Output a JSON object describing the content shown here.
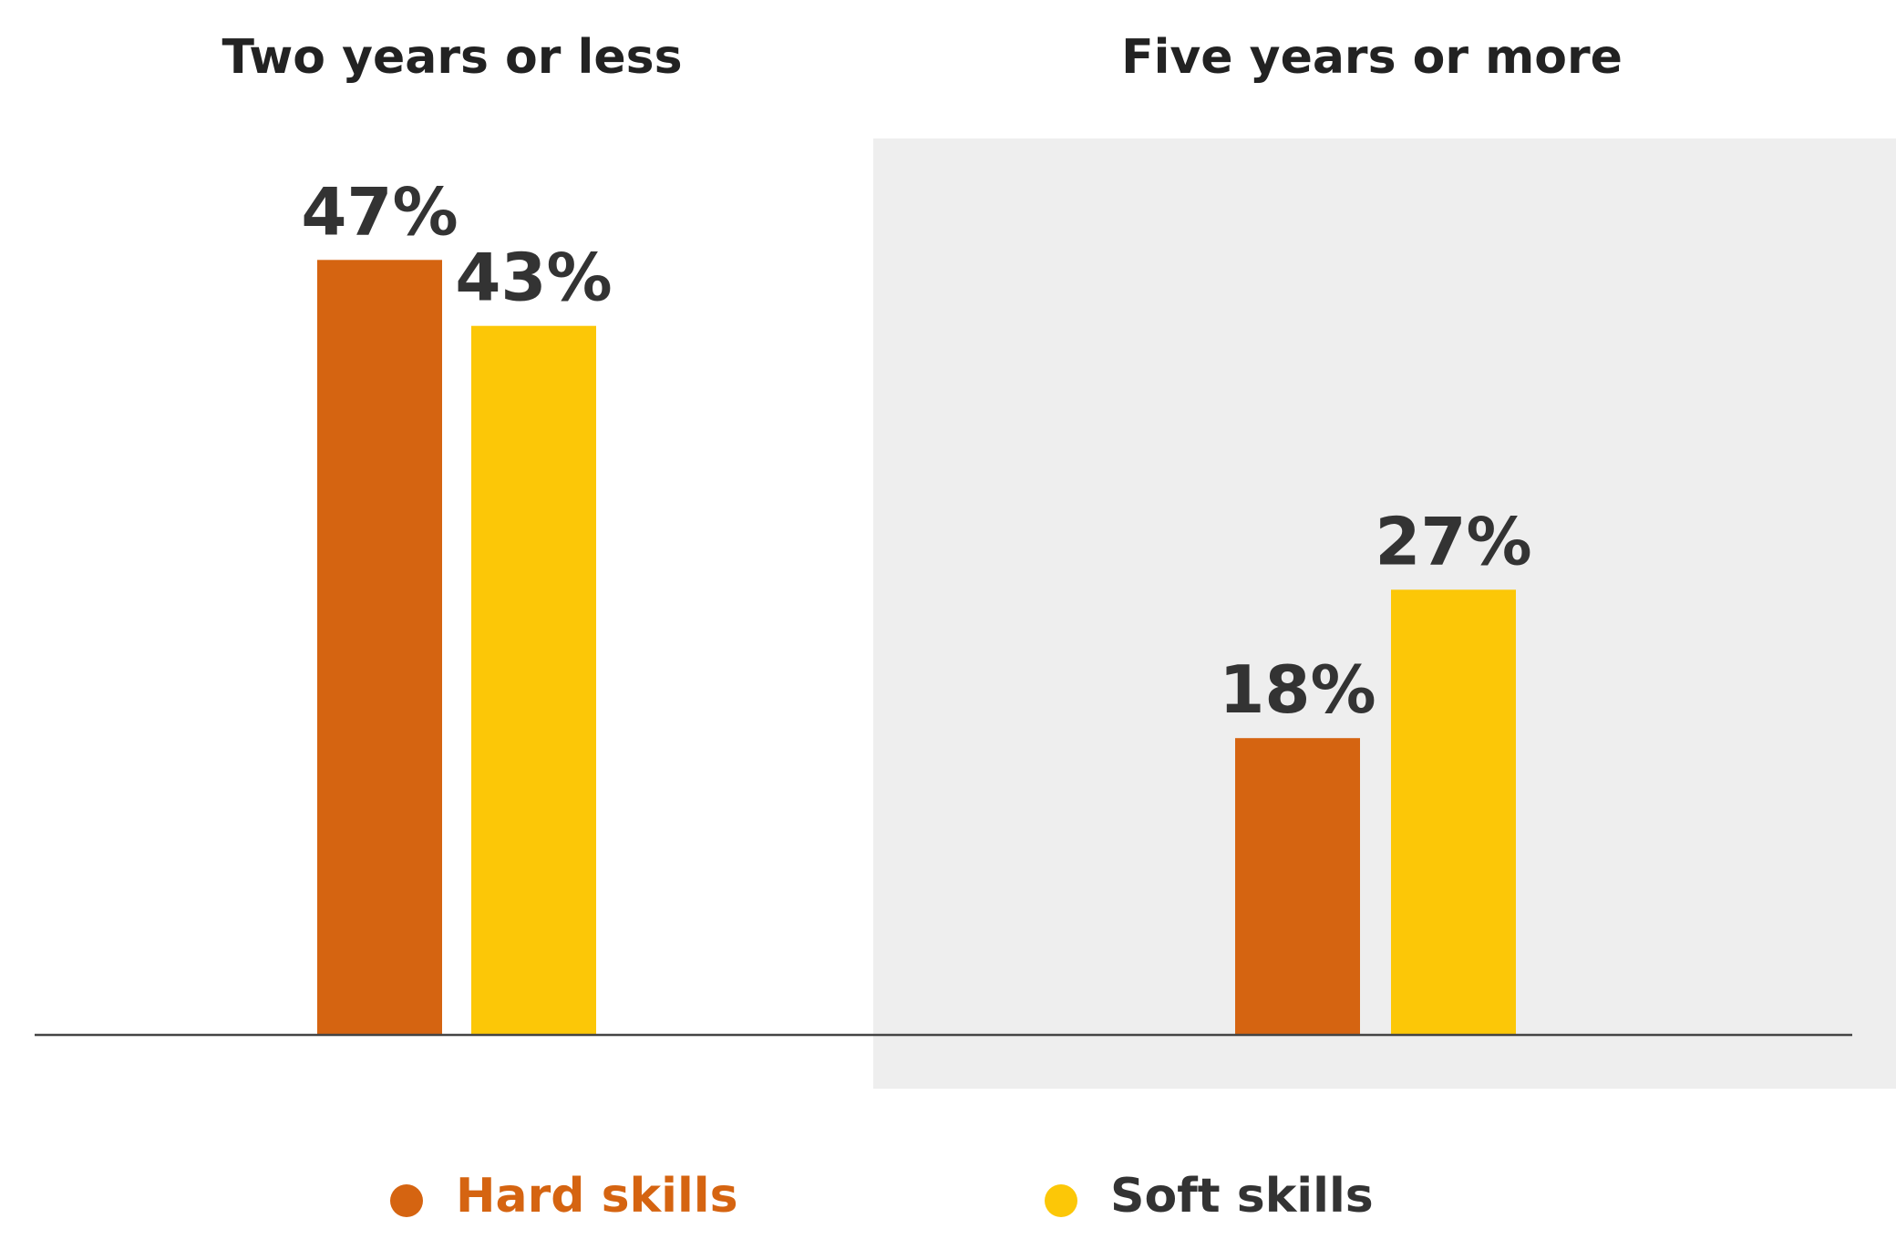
{
  "chart_data": {
    "type": "bar",
    "categories": [
      "Two years or less",
      "Five years or more"
    ],
    "series": [
      {
        "name": "Hard skills",
        "values": [
          47,
          18
        ],
        "labels": [
          "47%",
          "18%"
        ],
        "color": "#d56411"
      },
      {
        "name": "Soft skills",
        "values": [
          43,
          27
        ],
        "labels": [
          "43%",
          "27%"
        ],
        "color": "#fcc707"
      }
    ],
    "ylim": [
      0,
      100
    ],
    "grid": false,
    "legend_position": "bottom",
    "highlight_background": "#eeeeee",
    "legend_label_colors": [
      "#d56411",
      "#333333"
    ]
  }
}
